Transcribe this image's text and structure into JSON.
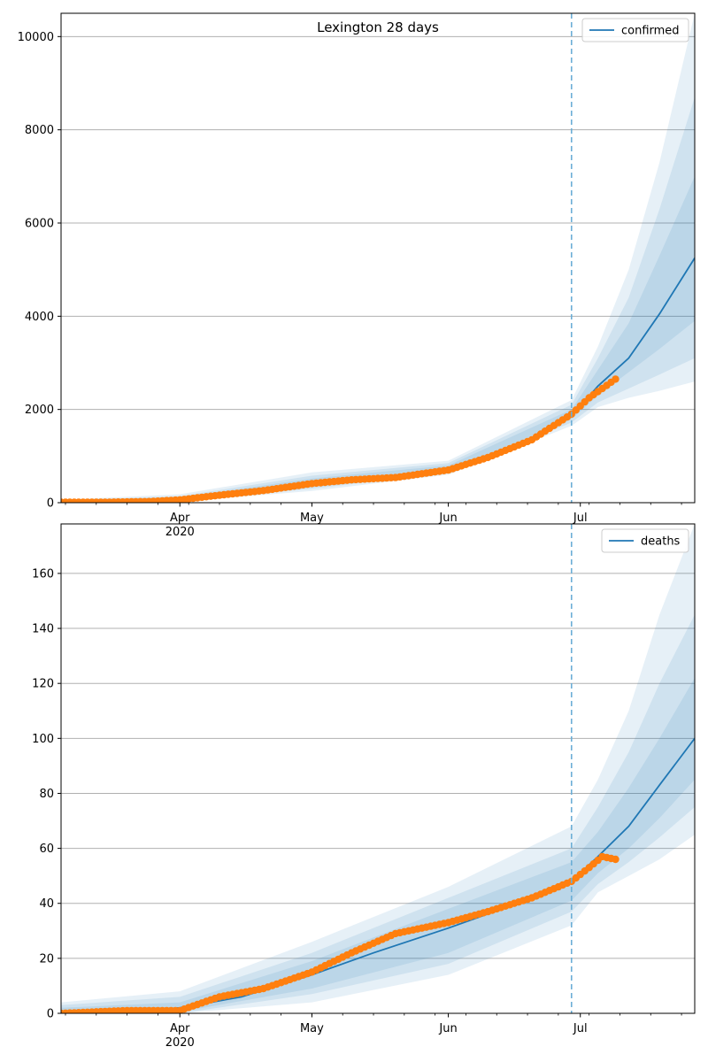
{
  "colors": {
    "model": "#1f77b4",
    "observed": "#ff7f0e",
    "band": "#1f77b4",
    "vline": "#6baed6",
    "grid": "#b0b0b0"
  },
  "chart_data": [
    {
      "type": "line",
      "title": "Lexington 28 days",
      "legend": {
        "position": "top-right",
        "label": "confirmed"
      },
      "grid": "horizontal",
      "x_range": [
        "2020-03-05",
        "2020-07-27"
      ],
      "ylim": [
        0,
        10500
      ],
      "y_ticks": [
        0,
        2000,
        4000,
        6000,
        8000,
        10000
      ],
      "y_tick_labels": [
        "0",
        "2000",
        "4000",
        "6000",
        "8000",
        "10000"
      ],
      "x_major_ticks": [
        "2020-04-01",
        "2020-05-01",
        "2020-06-01",
        "2020-07-01"
      ],
      "x_tick_labels": [
        "Apr",
        "May",
        "Jun",
        "Jul"
      ],
      "x_year_label": "2020",
      "forecast_start": "2020-06-29",
      "median": {
        "x": [
          "2020-03-05",
          "2020-03-15",
          "2020-03-25",
          "2020-04-01",
          "2020-04-10",
          "2020-04-20",
          "2020-05-01",
          "2020-05-10",
          "2020-05-20",
          "2020-06-01",
          "2020-06-10",
          "2020-06-20",
          "2020-06-29",
          "2020-07-05",
          "2020-07-12",
          "2020-07-19",
          "2020-07-27"
        ],
        "y": [
          10,
          15,
          30,
          70,
          170,
          290,
          420,
          500,
          560,
          720,
          980,
          1350,
          1850,
          2500,
          3100,
          4050,
          5250
        ]
      },
      "bands": [
        {
          "x": [
            "2020-03-05",
            "2020-04-01",
            "2020-05-01",
            "2020-06-01",
            "2020-06-29",
            "2020-07-05",
            "2020-07-12",
            "2020-07-19",
            "2020-07-27"
          ],
          "lower": [
            0,
            20,
            250,
            600,
            1650,
            2050,
            2250,
            2400,
            2600
          ],
          "upper": [
            60,
            180,
            650,
            900,
            2200,
            3350,
            5000,
            7300,
            10500
          ]
        },
        {
          "x": [
            "2020-03-05",
            "2020-04-01",
            "2020-05-01",
            "2020-06-01",
            "2020-06-29",
            "2020-07-05",
            "2020-07-12",
            "2020-07-19",
            "2020-07-27"
          ],
          "lower": [
            0,
            35,
            300,
            640,
            1720,
            2150,
            2450,
            2750,
            3100
          ],
          "upper": [
            45,
            140,
            580,
            850,
            2100,
            3100,
            4400,
            6300,
            8700
          ]
        },
        {
          "x": [
            "2020-03-05",
            "2020-04-01",
            "2020-05-01",
            "2020-06-01",
            "2020-06-29",
            "2020-07-05",
            "2020-07-12",
            "2020-07-19",
            "2020-07-27"
          ],
          "lower": [
            0,
            50,
            350,
            680,
            1790,
            2300,
            2800,
            3300,
            3900
          ],
          "upper": [
            30,
            110,
            520,
            800,
            2000,
            2850,
            3850,
            5300,
            7000
          ]
        }
      ],
      "observed": {
        "x": [
          "2020-03-05",
          "2020-03-15",
          "2020-03-25",
          "2020-04-01",
          "2020-04-10",
          "2020-04-20",
          "2020-05-01",
          "2020-05-10",
          "2020-05-20",
          "2020-06-01",
          "2020-06-10",
          "2020-06-20",
          "2020-06-29",
          "2020-07-03",
          "2020-07-09"
        ],
        "y": [
          10,
          10,
          25,
          60,
          160,
          260,
          410,
          490,
          540,
          700,
          970,
          1350,
          1900,
          2250,
          2650
        ]
      }
    },
    {
      "type": "line",
      "legend": {
        "position": "top-right",
        "label": "deaths"
      },
      "grid": "horizontal",
      "x_range": [
        "2020-03-05",
        "2020-07-27"
      ],
      "ylim": [
        0,
        178
      ],
      "y_ticks": [
        0,
        20,
        40,
        60,
        80,
        100,
        120,
        140,
        160
      ],
      "y_tick_labels": [
        "0",
        "20",
        "40",
        "60",
        "80",
        "100",
        "120",
        "140",
        "160"
      ],
      "x_major_ticks": [
        "2020-04-01",
        "2020-05-01",
        "2020-06-01",
        "2020-07-01"
      ],
      "x_tick_labels": [
        "Apr",
        "May",
        "Jun",
        "Jul"
      ],
      "x_year_label": "2020",
      "forecast_start": "2020-06-29",
      "median": {
        "x": [
          "2020-03-05",
          "2020-03-20",
          "2020-04-01",
          "2020-04-15",
          "2020-05-01",
          "2020-05-15",
          "2020-06-01",
          "2020-06-15",
          "2020-06-29",
          "2020-07-05",
          "2020-07-12",
          "2020-07-19",
          "2020-07-27"
        ],
        "y": [
          0,
          0.5,
          2,
          6,
          14,
          22,
          31,
          39,
          48,
          57,
          68,
          83,
          100
        ]
      },
      "bands": [
        {
          "x": [
            "2020-03-05",
            "2020-04-01",
            "2020-05-01",
            "2020-06-01",
            "2020-06-29",
            "2020-07-05",
            "2020-07-12",
            "2020-07-19",
            "2020-07-27"
          ],
          "lower": [
            0,
            0,
            4,
            14,
            32,
            44,
            50,
            56,
            65
          ],
          "upper": [
            4,
            8,
            26,
            46,
            68,
            85,
            110,
            145,
            178
          ]
        },
        {
          "x": [
            "2020-03-05",
            "2020-04-01",
            "2020-05-01",
            "2020-06-01",
            "2020-06-29",
            "2020-07-05",
            "2020-07-12",
            "2020-07-19",
            "2020-07-27"
          ],
          "lower": [
            0,
            0,
            7,
            18,
            37,
            47,
            55,
            64,
            75
          ],
          "upper": [
            3,
            6,
            22,
            42,
            60,
            75,
            95,
            120,
            145
          ]
        },
        {
          "x": [
            "2020-03-05",
            "2020-04-01",
            "2020-05-01",
            "2020-06-01",
            "2020-06-29",
            "2020-07-05",
            "2020-07-12",
            "2020-07-19",
            "2020-07-27"
          ],
          "lower": [
            0,
            0.5,
            9,
            22,
            41,
            51,
            60,
            71,
            85
          ],
          "upper": [
            2,
            4,
            19,
            38,
            55,
            66,
            82,
            100,
            122
          ]
        }
      ],
      "observed": {
        "x": [
          "2020-03-05",
          "2020-03-20",
          "2020-04-01",
          "2020-04-10",
          "2020-04-20",
          "2020-05-01",
          "2020-05-10",
          "2020-05-20",
          "2020-06-01",
          "2020-06-10",
          "2020-06-20",
          "2020-06-29",
          "2020-07-03",
          "2020-07-06",
          "2020-07-09"
        ],
        "y": [
          0,
          1,
          1,
          6,
          9,
          15,
          22,
          29,
          33,
          37,
          42,
          48,
          53,
          57,
          56
        ]
      }
    }
  ]
}
